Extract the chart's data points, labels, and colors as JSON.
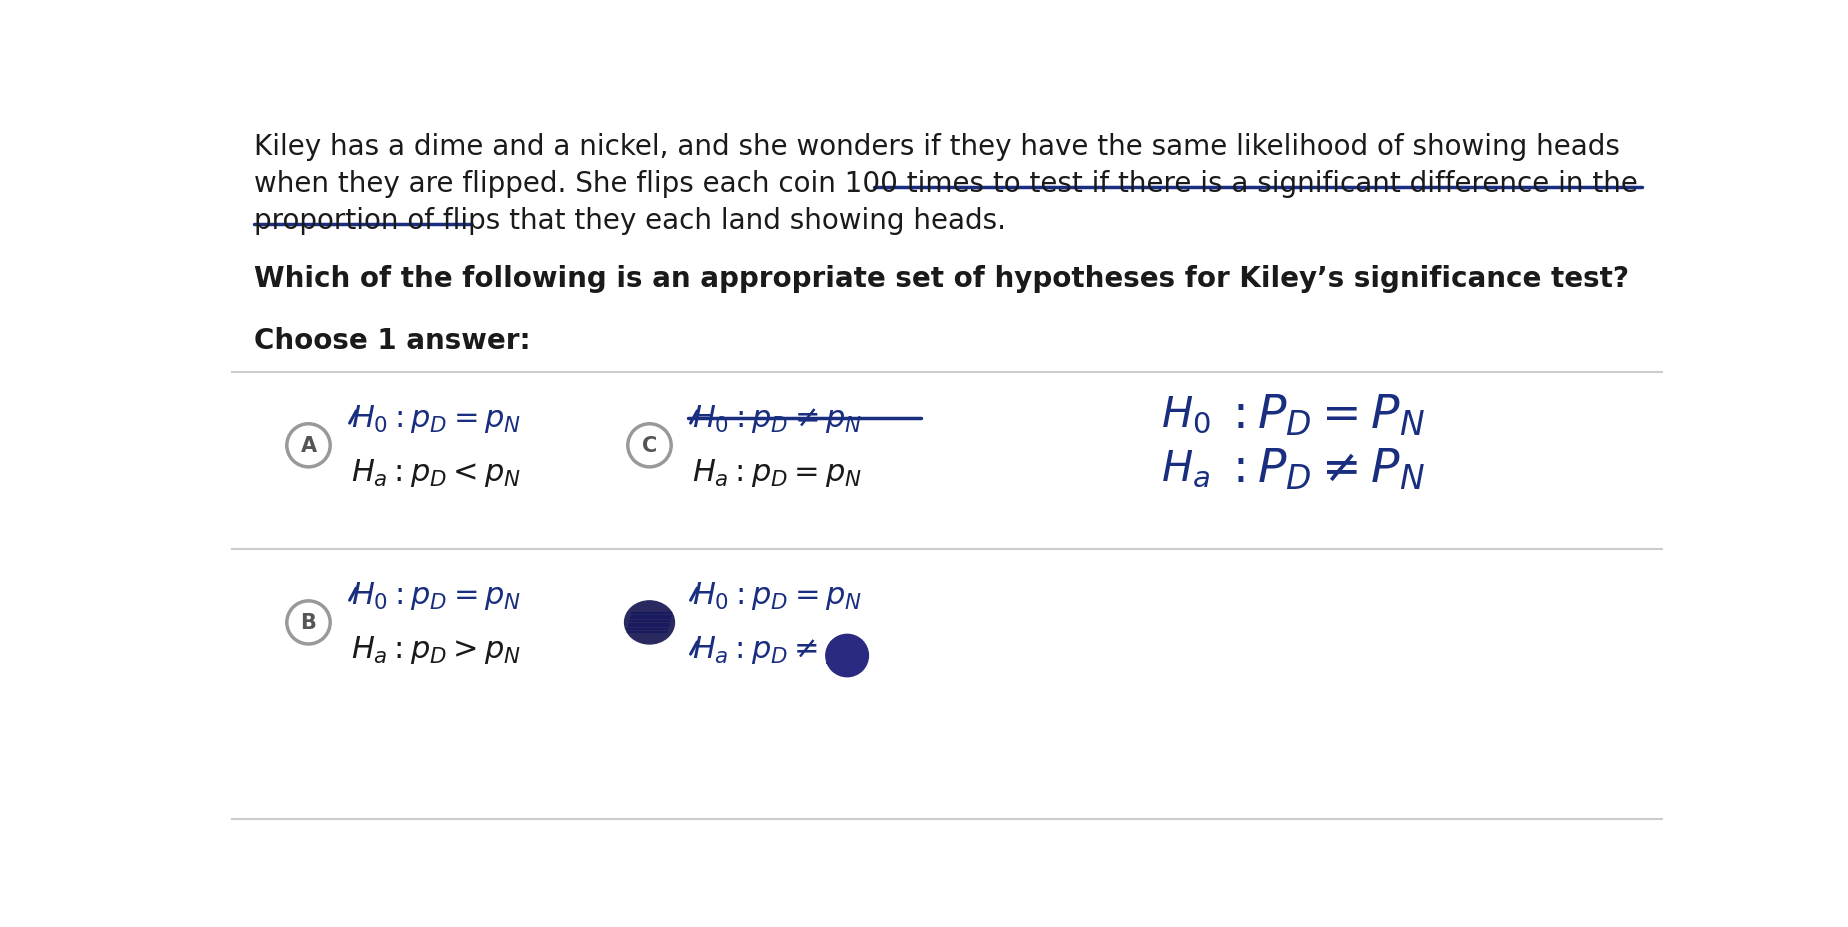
{
  "background_color": "#ffffff",
  "fig_width": 18.48,
  "fig_height": 9.28,
  "text_color": "#1a1a1a",
  "blue_color": "#1a2e80",
  "dark_blue": "#1a2e80",
  "gray_circle": "#999999",
  "para_line1": "Kiley has a dime and a nickel, and she wonders if they have the same likelihood of showing heads",
  "para_line2": "when they are flipped. She flips each coin 100 times to test if there is a significant difference in the",
  "para_line3": "proportion of flips that they each land showing heads.",
  "question_text": "Which of the following is an appropriate set of hypotheses for Kiley’s significance test?",
  "choose_text": "Choose 1 answer:"
}
